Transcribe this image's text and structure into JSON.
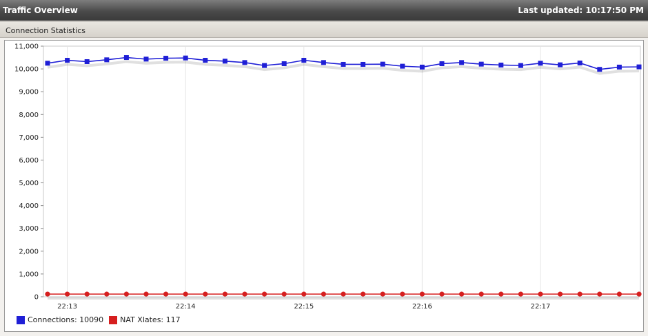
{
  "window": {
    "title": "Traffic Overview",
    "last_updated": "Last updated: 10:17:50 PM"
  },
  "panel": {
    "title": "Connection Statistics"
  },
  "chart_data": {
    "type": "line",
    "x_tick_labels": [
      "22:13",
      "22:14",
      "22:15",
      "22:16",
      "22:17"
    ],
    "y_ticks": [
      "0",
      "1,000",
      "2,000",
      "3,000",
      "4,000",
      "5,000",
      "6,000",
      "7,000",
      "8,000",
      "9,000",
      "10,000",
      "11,000"
    ],
    "ylim": [
      0,
      11000
    ],
    "grid": true,
    "legend_position": "bottom-left",
    "series": [
      {
        "name": "Connections",
        "color": "#1f1fd6",
        "marker": "square",
        "values": [
          10250,
          10380,
          10320,
          10400,
          10500,
          10430,
          10470,
          10480,
          10380,
          10340,
          10280,
          10150,
          10230,
          10380,
          10280,
          10200,
          10200,
          10210,
          10120,
          10080,
          10230,
          10280,
          10210,
          10170,
          10150,
          10250,
          10180,
          10260,
          9980,
          10080,
          10090
        ]
      },
      {
        "name": "NAT Xlates",
        "color": "#d61f1f",
        "marker": "circle",
        "values": [
          117,
          117,
          117,
          117,
          117,
          117,
          117,
          117,
          117,
          117,
          117,
          117,
          117,
          117,
          117,
          117,
          117,
          117,
          117,
          117,
          117,
          117,
          117,
          117,
          117,
          117,
          117,
          117,
          117,
          117,
          117
        ]
      }
    ]
  },
  "legend": {
    "connections": "Connections:  10090",
    "nat": "NAT Xlates:  117"
  }
}
